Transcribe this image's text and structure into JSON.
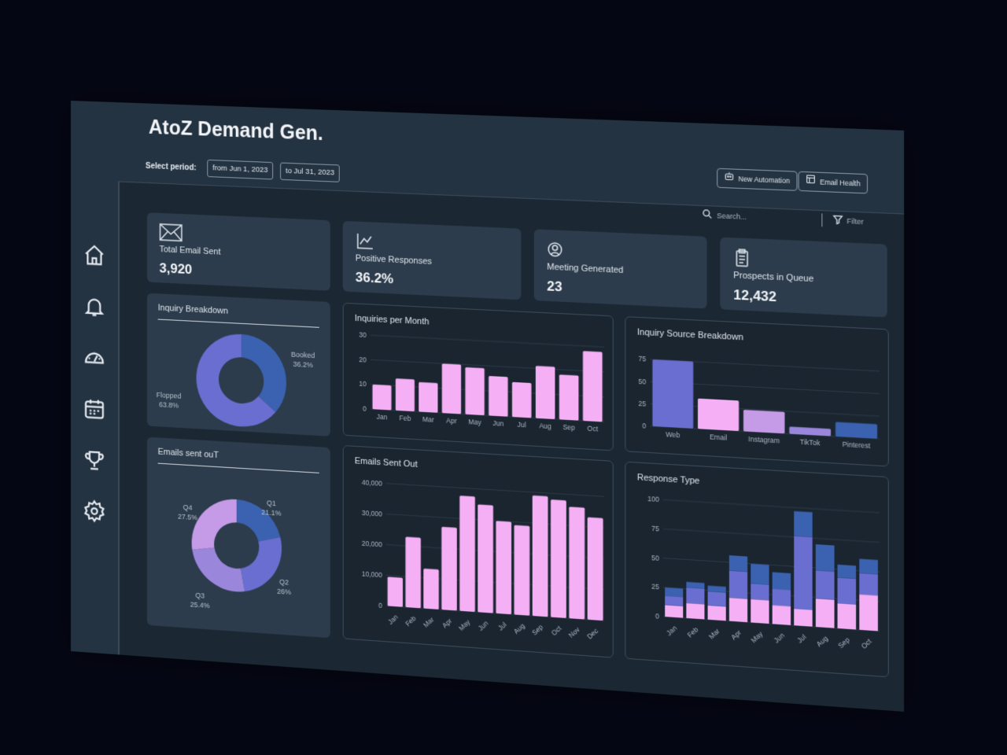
{
  "app": {
    "title": "AtoZ Demand Gen."
  },
  "period": {
    "label": "Select period:",
    "from": "from Jun 1, 2023",
    "to": "to Jul 31, 2023"
  },
  "actions": {
    "new_automation": "New Automation",
    "email_health": "Email Health"
  },
  "search": {
    "placeholder": "Search..."
  },
  "filter": {
    "label": "Filter"
  },
  "sidebar": {
    "items": [
      {
        "icon": "home-icon"
      },
      {
        "icon": "bell-icon"
      },
      {
        "icon": "speedometer-icon"
      },
      {
        "icon": "calendar-icon"
      },
      {
        "icon": "trophy-icon"
      },
      {
        "icon": "gear-icon"
      }
    ]
  },
  "stats": [
    {
      "label": "Total Email Sent",
      "value": "3,920",
      "icon": "envelope-icon"
    },
    {
      "label": "Positive Responses",
      "value": "36.2%",
      "icon": "line-chart-icon"
    },
    {
      "label": "Meeting Generated",
      "value": "23",
      "icon": "user-circle-icon"
    },
    {
      "label": "Prospects in Queue",
      "value": "12,432",
      "icon": "clipboard-icon"
    }
  ],
  "colors": {
    "pink": "#f5b0f5",
    "blue": "#3b62b0",
    "indigo": "#6a6ed0",
    "lavender": "#c59ae6",
    "violet": "#9a86db"
  },
  "chart_data": [
    {
      "type": "pie",
      "title": "Inquiry Breakdown",
      "slices": [
        {
          "label": "Booked",
          "value": 36.2,
          "display": "36.2%",
          "color": "#3b62b0"
        },
        {
          "label": "Flopped",
          "value": 63.8,
          "display": "63.8%",
          "color": "#6a6ed0"
        }
      ]
    },
    {
      "type": "bar",
      "title": "Inquiries per Month",
      "categories": [
        "Jan",
        "Feb",
        "Mar",
        "Apr",
        "May",
        "Jun",
        "Jul",
        "Aug",
        "Sep",
        "Oct"
      ],
      "values": [
        10,
        13,
        12,
        20,
        19,
        16,
        14,
        21,
        18,
        28
      ],
      "ylim": [
        0,
        30
      ],
      "yticks": [
        "0",
        "10",
        "20",
        "30"
      ],
      "color": "#f5b0f5"
    },
    {
      "type": "bar",
      "title": "Inquiry Source Breakdown",
      "categories": [
        "Web",
        "Email",
        "Instagram",
        "TikTok",
        "Pinterest"
      ],
      "values": [
        75,
        34,
        24,
        8,
        16
      ],
      "colors": [
        "#6a6ed0",
        "#f5b0f5",
        "#c59ae6",
        "#9a86db",
        "#3b62b0"
      ],
      "ylim": [
        0,
        90
      ],
      "yticks": [
        "0",
        "25",
        "50",
        "75"
      ]
    },
    {
      "type": "pie",
      "title": "Emails sent ouT",
      "slices": [
        {
          "label": "Q1",
          "value": 21.1,
          "display": "21.1%",
          "color": "#3b62b0"
        },
        {
          "label": "Q2",
          "value": 26,
          "display": "26%",
          "color": "#6a6ed0"
        },
        {
          "label": "Q3",
          "value": 25.4,
          "display": "25.4%",
          "color": "#9a86db"
        },
        {
          "label": "Q4",
          "value": 27.5,
          "display": "27.5%",
          "color": "#c59ae6"
        }
      ]
    },
    {
      "type": "bar",
      "title": "Emails Sent Out",
      "categories": [
        "Jan",
        "Feb",
        "Mar",
        "Apr",
        "May",
        "Jun",
        "Jul",
        "Aug",
        "Sep",
        "Oct",
        "Nov",
        "Dec"
      ],
      "values": [
        9500,
        23000,
        13000,
        27000,
        37500,
        35000,
        30000,
        29000,
        39000,
        38000,
        36000,
        33000
      ],
      "ylim": [
        0,
        42000
      ],
      "yticks": [
        "0",
        "10,000",
        "20,000",
        "30,000",
        "40,000"
      ],
      "color": "#f5b0f5"
    },
    {
      "type": "bar",
      "title": "Response Type",
      "categories": [
        "Jan",
        "Feb",
        "Mar",
        "Apr",
        "May",
        "Jun",
        "Jul",
        "Aug",
        "Sep",
        "Oct"
      ],
      "series": [
        {
          "values": [
            10,
            13,
            12,
            20,
            20,
            16,
            14,
            24,
            21,
            30
          ],
          "color": "#f5b0f5"
        },
        {
          "values": [
            8,
            13,
            12,
            23,
            13,
            14,
            62,
            24,
            22,
            18
          ],
          "color": "#6a6ed0"
        },
        {
          "values": [
            7,
            5,
            5,
            13,
            17,
            14,
            21,
            22,
            11,
            12
          ],
          "color": "#3b62b0"
        }
      ],
      "ylim": [
        0,
        105
      ],
      "yticks": [
        "0",
        "25",
        "50",
        "75",
        "100"
      ],
      "stacked": true
    }
  ]
}
